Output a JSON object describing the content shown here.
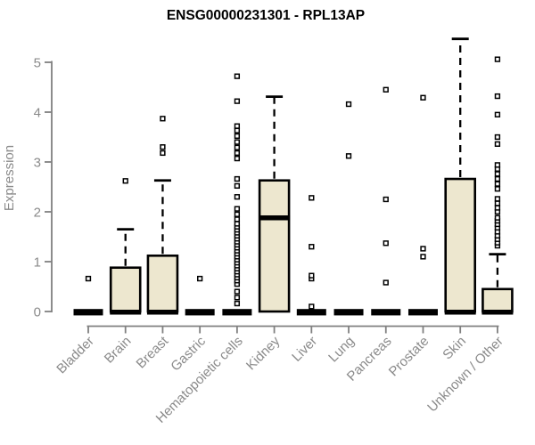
{
  "chart_data": {
    "type": "boxplot",
    "title": "ENSG00000231301 - RPL13AP",
    "ylabel": "Expression",
    "xlabel": "",
    "ylim": [
      0,
      5
    ],
    "yticks": [
      0,
      1,
      2,
      3,
      4,
      5
    ],
    "grid": false,
    "legend": "none",
    "categories": [
      "Bladder",
      "Brain",
      "Breast",
      "Gastric",
      "Hematopoietic cells",
      "Kidney",
      "Liver",
      "Lung",
      "Pancreas",
      "Prostate",
      "Skin",
      "Unknown / Other"
    ],
    "series": [
      {
        "name": "Bladder",
        "q1": 0,
        "median": 0,
        "q3": 0,
        "whisker_low": 0,
        "whisker_high": 0,
        "outliers": [
          0.66
        ]
      },
      {
        "name": "Brain",
        "q1": 0,
        "median": 0,
        "q3": 0.88,
        "whisker_low": 0,
        "whisker_high": 1.65,
        "outliers": [
          2.62
        ]
      },
      {
        "name": "Breast",
        "q1": 0,
        "median": 0,
        "q3": 1.12,
        "whisker_low": 0,
        "whisker_high": 2.63,
        "outliers": [
          3.18,
          3.3,
          3.87
        ]
      },
      {
        "name": "Gastric",
        "q1": 0,
        "median": 0,
        "q3": 0,
        "whisker_low": 0,
        "whisker_high": 0,
        "outliers": [
          0.66
        ]
      },
      {
        "name": "Hematopoietic cells",
        "q1": 0,
        "median": 0,
        "q3": 0,
        "whisker_low": 0,
        "whisker_high": 0,
        "outliers": [
          0.16,
          0.28,
          0.4,
          0.55,
          0.62,
          0.68,
          0.74,
          0.8,
          0.86,
          0.92,
          0.98,
          1.04,
          1.1,
          1.16,
          1.22,
          1.28,
          1.34,
          1.4,
          1.46,
          1.52,
          1.58,
          1.64,
          1.7,
          1.76,
          1.85,
          1.95,
          2.06,
          2.3,
          2.52,
          2.66,
          3.07,
          3.18,
          3.29,
          3.4,
          3.52,
          3.63,
          3.72,
          4.22,
          4.72
        ]
      },
      {
        "name": "Kidney",
        "q1": 0,
        "median": 1.88,
        "q3": 2.63,
        "whisker_low": 0,
        "whisker_high": 4.31,
        "outliers": []
      },
      {
        "name": "Liver",
        "q1": 0,
        "median": 0,
        "q3": 0,
        "whisker_low": 0,
        "whisker_high": 0,
        "outliers": [
          0.1,
          0.66,
          0.72,
          1.3,
          2.28
        ]
      },
      {
        "name": "Lung",
        "q1": 0,
        "median": 0,
        "q3": 0,
        "whisker_low": 0,
        "whisker_high": 0,
        "outliers": [
          3.12,
          4.16
        ]
      },
      {
        "name": "Pancreas",
        "q1": 0,
        "median": 0,
        "q3": 0,
        "whisker_low": 0,
        "whisker_high": 0,
        "outliers": [
          0.58,
          1.37,
          2.25,
          4.45
        ]
      },
      {
        "name": "Prostate",
        "q1": 0,
        "median": 0,
        "q3": 0,
        "whisker_low": 0,
        "whisker_high": 0,
        "outliers": [
          1.1,
          1.26,
          4.29
        ]
      },
      {
        "name": "Skin",
        "q1": 0,
        "median": 0,
        "q3": 2.66,
        "whisker_low": 0,
        "whisker_high": 5.47,
        "outliers": []
      },
      {
        "name": "Unknown / Other",
        "q1": 0,
        "median": 0,
        "q3": 0.45,
        "whisker_low": 0,
        "whisker_high": 1.15,
        "outliers": [
          1.32,
          1.38,
          1.45,
          1.52,
          1.6,
          1.68,
          1.75,
          1.82,
          1.88,
          2.0,
          2.08,
          2.17,
          2.26,
          2.46,
          2.56,
          2.66,
          2.76,
          2.86,
          2.94,
          3.36,
          3.5,
          3.95,
          4.32,
          5.06
        ]
      }
    ],
    "colors": {
      "box_fill": "#EDE7CF",
      "box_stroke": "#000000",
      "median": "#000000",
      "whisker": "#000000",
      "outlier_fill": "#FFFFFF",
      "outlier_stroke": "#000000",
      "axis": "#808080",
      "tick_label": "#8A8A8A",
      "title": "#000000",
      "background": "#FFFFFF"
    }
  }
}
